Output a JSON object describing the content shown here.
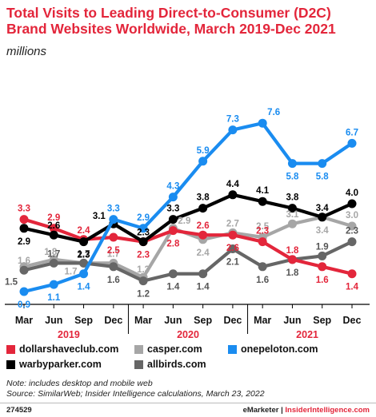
{
  "header": {
    "title": "Total Visits to Leading Direct-to-Consumer (D2C) Brand Websites Worldwide, March 2019-Dec 2021",
    "subtitle": "millions"
  },
  "chart_data": {
    "type": "line",
    "categories": [
      "Mar",
      "Jun",
      "Sep",
      "Dec",
      "Mar",
      "Jun",
      "Sep",
      "Dec",
      "Mar",
      "Jun",
      "Sep",
      "Dec"
    ],
    "year_groups": [
      {
        "label": "2019",
        "start": 0,
        "end": 3
      },
      {
        "label": "2020",
        "start": 4,
        "end": 7
      },
      {
        "label": "2021",
        "start": 8,
        "end": 11
      }
    ],
    "ylim": [
      0,
      8
    ],
    "grid": false,
    "legend_position": "bottom",
    "series": [
      {
        "name": "onepeloton.com",
        "color": "#1a8cf0",
        "values": [
          0.9,
          1.1,
          1.4,
          3.3,
          2.9,
          4.3,
          5.9,
          7.3,
          7.6,
          5.8,
          5.8,
          6.7
        ],
        "labels": [
          "0.9",
          "1.1",
          "1.4",
          "3.3",
          "2.9",
          "4.3",
          "5.9",
          "7.3",
          "7.6",
          "5.8",
          "5.8",
          "6.7"
        ]
      },
      {
        "name": "warbyparker.com",
        "color": "#000000",
        "values": [
          2.9,
          2.6,
          2.3,
          3.1,
          2.3,
          3.3,
          3.8,
          4.4,
          4.1,
          3.8,
          3.4,
          4.0
        ],
        "labels": [
          "2.9",
          "2.6",
          "2.3",
          "3.1",
          "2.3",
          "3.3",
          "3.8",
          "4.4",
          "4.1",
          "3.8",
          "3.4",
          "4.0"
        ]
      },
      {
        "name": "dollarshaveclub.com",
        "color": "#e3263b",
        "values": [
          3.3,
          2.9,
          2.4,
          2.5,
          2.3,
          2.8,
          2.6,
          2.6,
          2.3,
          1.8,
          1.6,
          1.4
        ],
        "labels": [
          "3.3",
          "2.9",
          "2.4",
          "2.5",
          "2.3",
          "2.8",
          "2.6",
          "2.6",
          "2.3",
          "1.8",
          "1.6",
          "1.4"
        ]
      },
      {
        "name": "casper.com",
        "color": "#a6a6a6",
        "values": [
          1.6,
          1.8,
          1.7,
          1.7,
          1.3,
          2.9,
          2.4,
          2.7,
          2.5,
          3.1,
          3.4,
          3.0
        ],
        "labels": [
          "1.6",
          "1.8",
          "1.7",
          "1.7",
          "1.3",
          "2.9",
          "2.4",
          "2.7",
          "2.5",
          "3.1",
          "3.4",
          "3.0"
        ]
      },
      {
        "name": "allbirds.com",
        "color": "#666666",
        "values": [
          1.5,
          1.7,
          1.7,
          1.6,
          1.2,
          1.4,
          1.4,
          2.1,
          1.6,
          1.8,
          1.9,
          2.3
        ],
        "labels": [
          "1.5",
          "1.7",
          "1.7",
          "1.6",
          "1.2",
          "1.4",
          "1.4",
          "2.1",
          "1.6",
          "1.8",
          "1.9",
          "2.3"
        ]
      }
    ]
  },
  "legend": [
    {
      "label": "dollarshaveclub.com",
      "color": "#e3263b"
    },
    {
      "label": "casper.com",
      "color": "#a6a6a6"
    },
    {
      "label": "onepeloton.com",
      "color": "#1a8cf0"
    },
    {
      "label": "warbyparker.com",
      "color": "#000000"
    },
    {
      "label": "allbirds.com",
      "color": "#666666"
    }
  ],
  "notes": {
    "note": "Note: includes desktop and mobile web",
    "source": "Source: SimilarWeb; Insider Intelligence calculations, March 23, 2022"
  },
  "footer": {
    "id": "274529",
    "brand_left": "eMarketer",
    "separator": "|",
    "brand_right": "InsiderIntelligence.com"
  }
}
